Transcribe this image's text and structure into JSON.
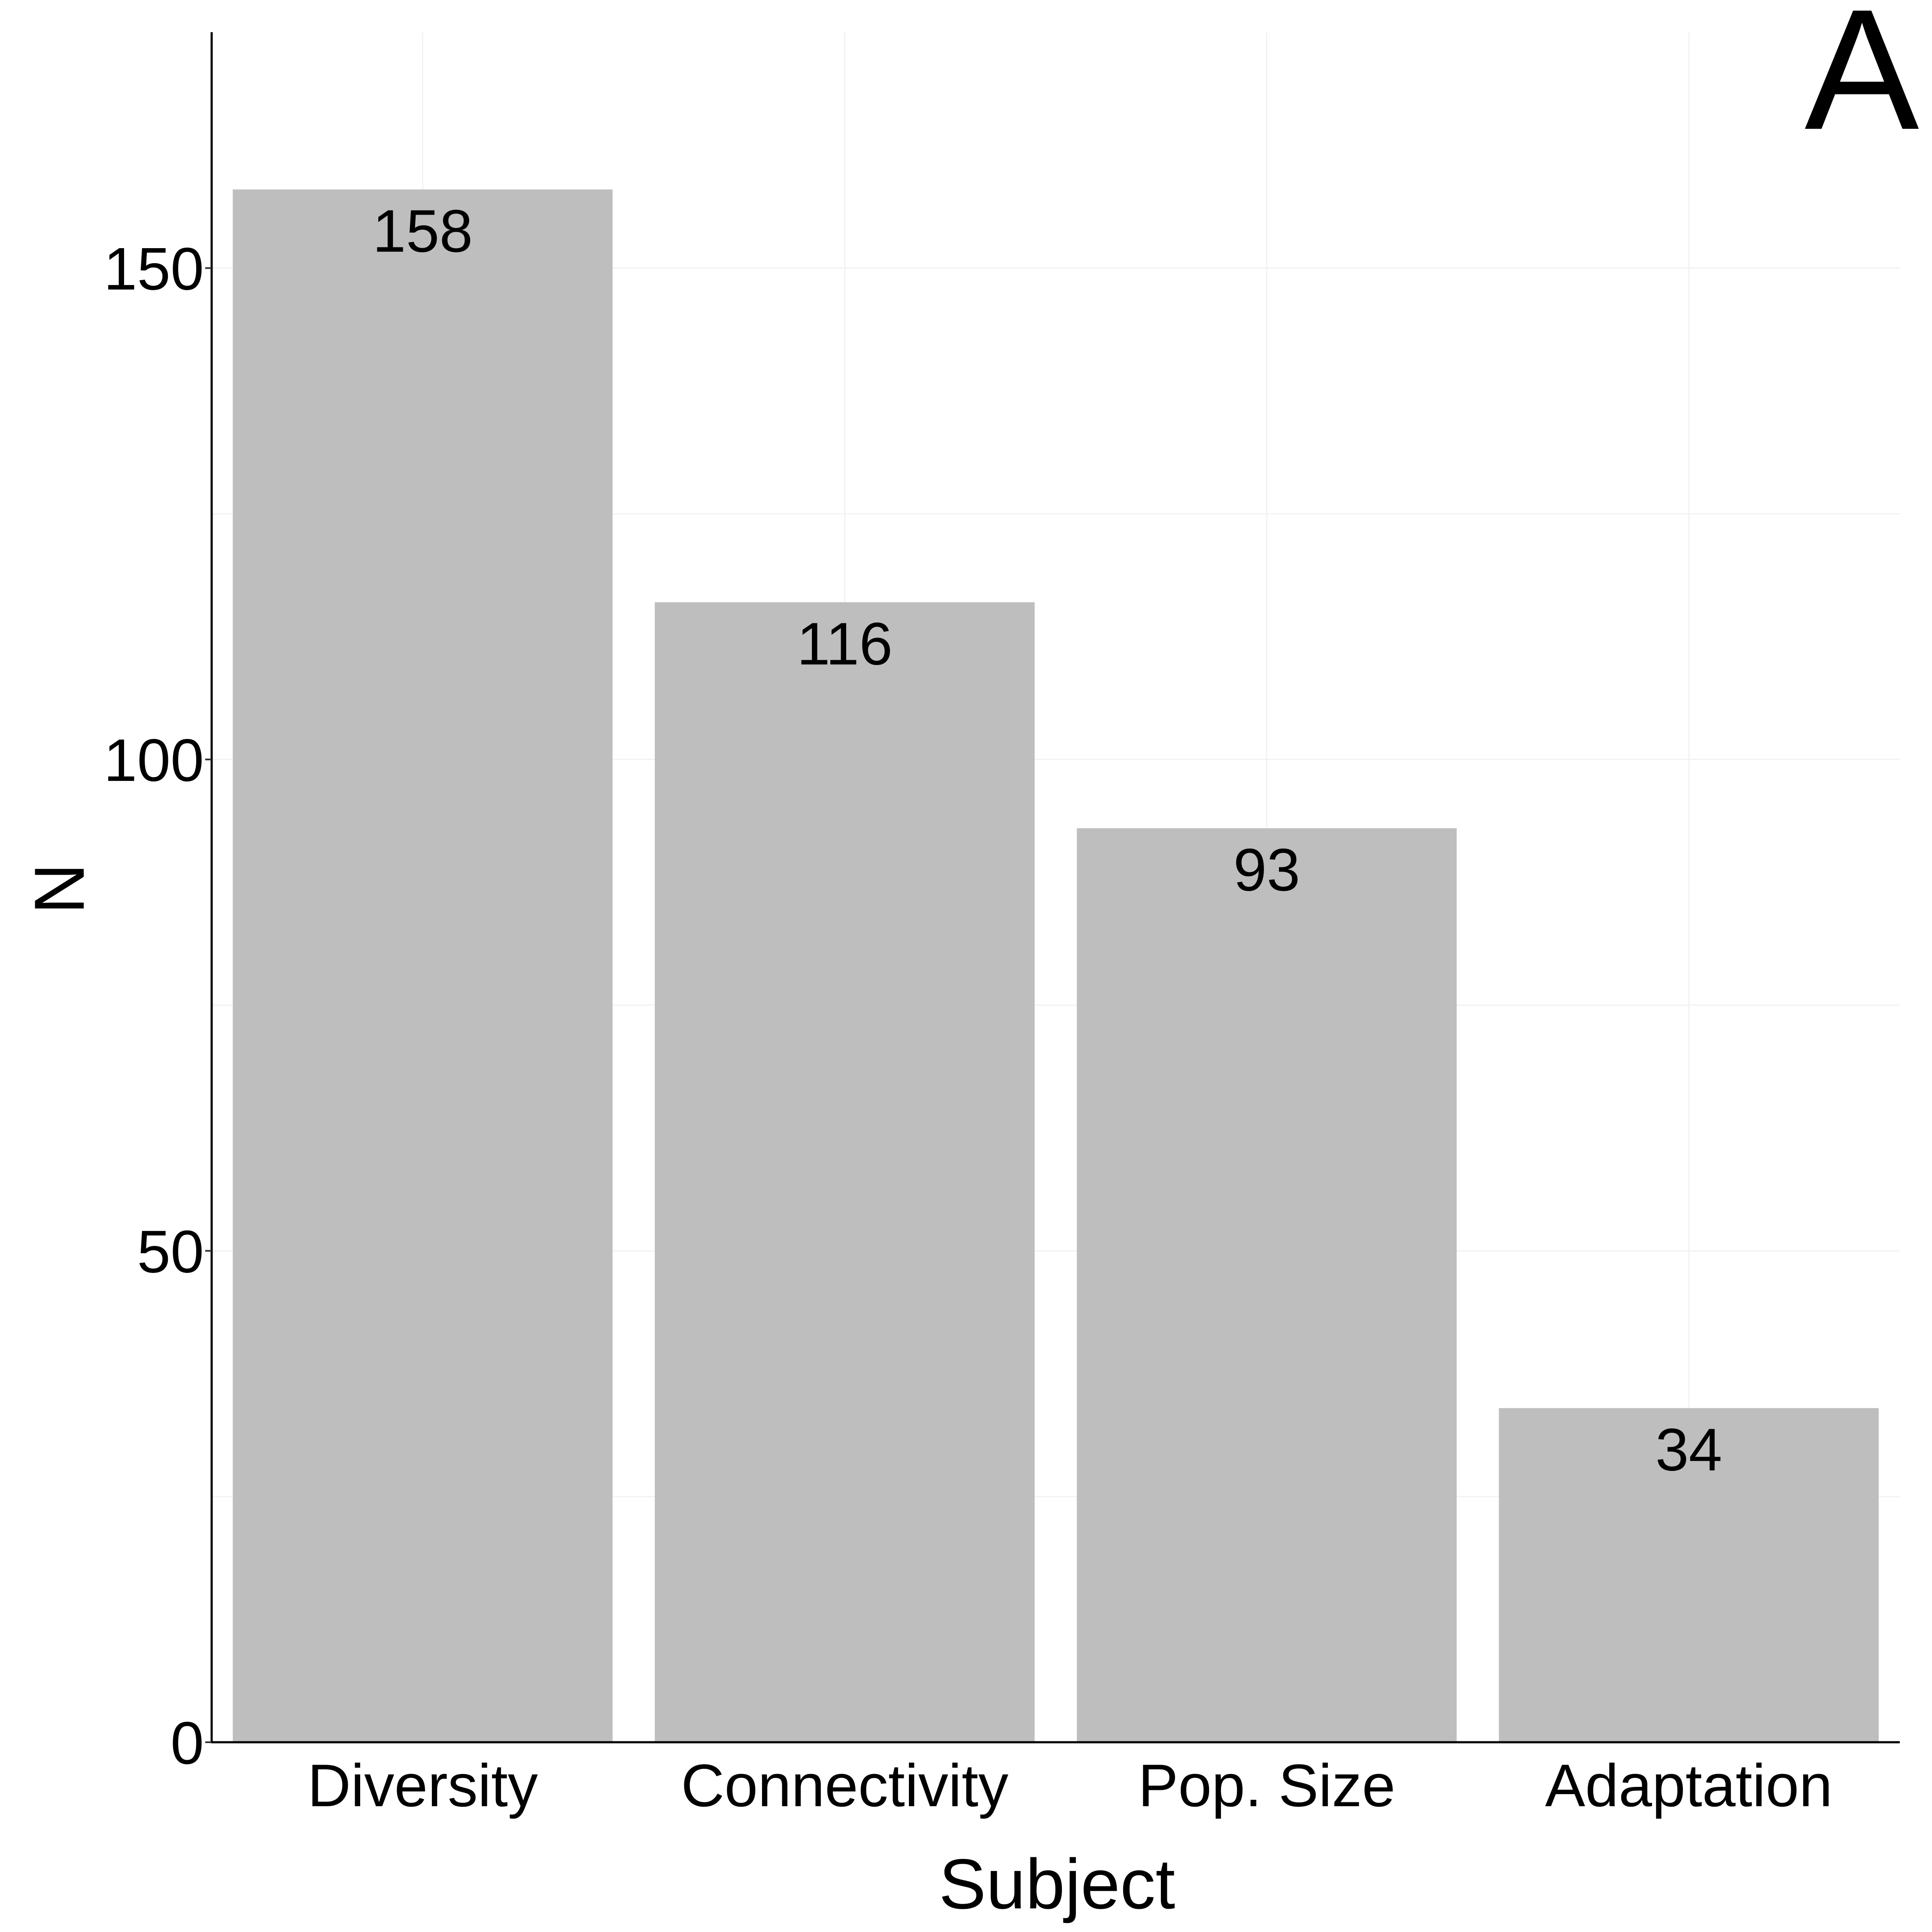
{
  "chart_data": {
    "type": "bar",
    "panel_label": "A",
    "categories": [
      "Diversity",
      "Connectivity",
      "Pop. Size",
      "Adaptation"
    ],
    "values": [
      158,
      116,
      93,
      34
    ],
    "data_labels": [
      "158",
      "116",
      "93",
      "34"
    ],
    "title": "",
    "xlabel": "Subject",
    "ylabel": "N",
    "ylim": [
      0,
      174
    ],
    "yticks": [
      0,
      50,
      100,
      150
    ],
    "ytick_labels": [
      "0",
      "50",
      "100",
      "150"
    ],
    "grid": "faint",
    "legend": "none",
    "bar_color": "#bebebe",
    "grid_color": "#f2f2f2",
    "axis_color": "#000000"
  }
}
